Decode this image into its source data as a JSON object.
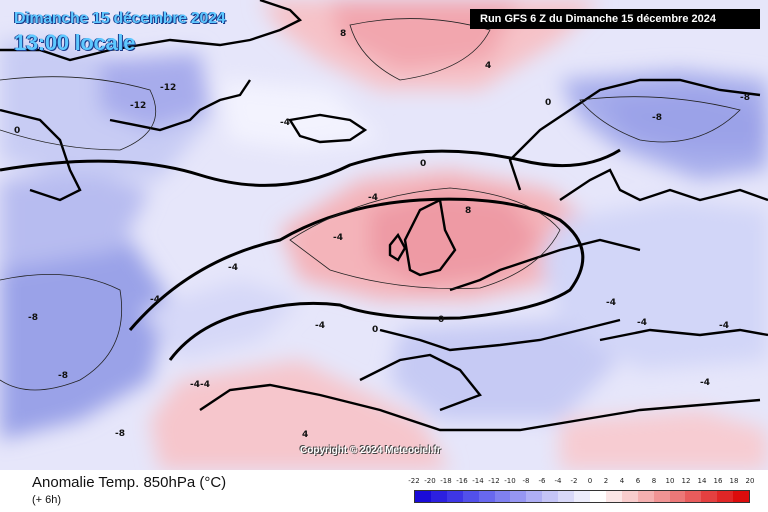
{
  "header": {
    "date": "Dimanche 15 décembre 2024",
    "local_time": "13:00 locale",
    "run_info": "Run GFS 6 Z du Dimanche 15 décembre 2024"
  },
  "footer": {
    "title": "Anomalie Temp. 850hPa (°C)",
    "subtitle": "(+ 6h)",
    "copyright": "Copyright © 2024 Meteociel.fr"
  },
  "legend": {
    "labels": [
      "-22",
      "-20",
      "-18",
      "-16",
      "-14",
      "-12",
      "-10",
      "-8",
      "-6",
      "-4",
      "-2",
      "0",
      "2",
      "4",
      "6",
      "8",
      "10",
      "12",
      "14",
      "16",
      "18",
      "20"
    ],
    "colors": [
      "#1a0bd8",
      "#2c20e0",
      "#3e36e6",
      "#5250ea",
      "#6868ee",
      "#7f80f0",
      "#9696f2",
      "#aeaef4",
      "#c4c4f6",
      "#d8d8f8",
      "#ececfb",
      "#ffffff",
      "#fbe6e6",
      "#f8cccc",
      "#f4b0b0",
      "#f09494",
      "#ec7878",
      "#e85c5c",
      "#e44040",
      "#e02626",
      "#dc0c0c"
    ],
    "accent_colors": {
      "warm": "#f6b8bc",
      "cold": "#9aa4ec",
      "neutral": "#eef0ff",
      "land_border": "#000000",
      "contour": "#000000"
    }
  },
  "map_labels": [
    {
      "name": "label-minus-12-greenland",
      "text": "-12"
    },
    {
      "name": "label-minus-12-greenland-2",
      "text": "-12"
    },
    {
      "name": "label-minus-8-west",
      "text": "-8"
    },
    {
      "name": "label-minus-8-west-2",
      "text": "-8"
    },
    {
      "name": "label-minus-4-atlantic",
      "text": "-4"
    },
    {
      "name": "label-minus-4-atlantic-2",
      "text": "-4"
    },
    {
      "name": "label-minus-4-atlantic-3",
      "text": "-4"
    },
    {
      "name": "label-minus-4-iberia",
      "text": "-4"
    },
    {
      "name": "label-plus-4-north",
      "text": "4"
    },
    {
      "name": "label-plus-8-arctic",
      "text": "8"
    },
    {
      "name": "label-plus-8-uk",
      "text": "8"
    },
    {
      "name": "label-plus-4-sahara",
      "text": "4"
    },
    {
      "name": "label-minus-8-russia",
      "text": "-8"
    },
    {
      "name": "label-minus-4-balkans",
      "text": "-4"
    },
    {
      "name": "label-minus-4-turkey",
      "text": "-4"
    },
    {
      "name": "label-zero-atlantic",
      "text": "0"
    },
    {
      "name": "label-zero-europe",
      "text": "0"
    },
    {
      "name": "label-zero-greenland",
      "text": "0"
    },
    {
      "name": "label-zero-scandinavia",
      "text": "0"
    },
    {
      "name": "label-zero-north-africa",
      "text": "0"
    },
    {
      "name": "label-minus-4-mid-atlantic",
      "text": "-4"
    },
    {
      "name": "label-minus-4-west-atlantic",
      "text": "-4"
    },
    {
      "name": "label-minus-8-bottom-left",
      "text": "-8"
    },
    {
      "name": "label-minus-4-4-atlantic",
      "text": "-4-4"
    },
    {
      "name": "label-minus-4-east-europe",
      "text": "-4"
    },
    {
      "name": "label-minus-4-ukraine",
      "text": "-4"
    },
    {
      "name": "label-minus-8-urals",
      "text": "-8"
    }
  ]
}
